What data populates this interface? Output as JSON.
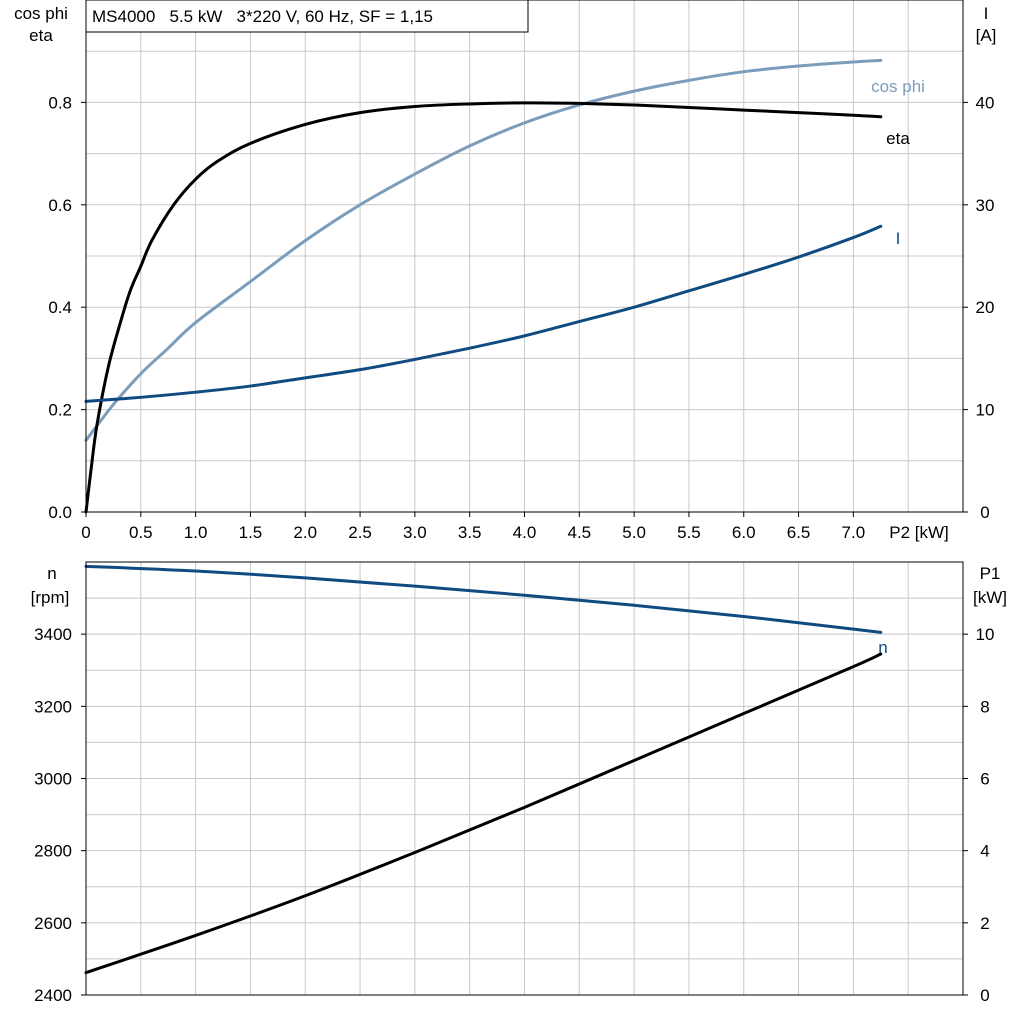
{
  "colors": {
    "eta": "#000000",
    "cos_phi": "#7b9dbb",
    "I": "#0f4a80",
    "n": "#0f4a80",
    "P1": "#000000",
    "grid": "#c8c8c8"
  },
  "chart_data": [
    {
      "type": "line",
      "title": "MS4000   5.5 kW   3*220 V, 60 Hz, SF = 1,15",
      "xlabel": "P2 [kW]",
      "ylabel_left": [
        "cos phi",
        "eta"
      ],
      "ylabel_right": [
        "I",
        "[A]"
      ],
      "xlim": [
        0,
        8.0
      ],
      "ylim_left": [
        0,
        1.0
      ],
      "ylim_right": [
        0,
        50
      ],
      "x_ticks": [
        "0",
        "0.5",
        "1.0",
        "1.5",
        "2.0",
        "2.5",
        "3.0",
        "3.5",
        "4.0",
        "4.5",
        "5.0",
        "5.5",
        "6.0",
        "6.5",
        "7.0"
      ],
      "y_left_ticks": [
        "0.0",
        "0.2",
        "0.4",
        "0.6",
        "0.8"
      ],
      "y_right_ticks": [
        "0",
        "10",
        "20",
        "30",
        "40"
      ],
      "grid": true,
      "series": [
        {
          "name": "eta",
          "axis": "left",
          "color_key": "eta",
          "x": [
            0,
            0.05,
            0.1,
            0.2,
            0.3,
            0.4,
            0.5,
            0.6,
            0.8,
            1.0,
            1.2,
            1.5,
            2.0,
            2.5,
            3.0,
            3.5,
            4.0,
            4.5,
            5.0,
            5.5,
            6.0,
            6.5,
            7.0,
            7.25
          ],
          "y": [
            0.0,
            0.09,
            0.17,
            0.28,
            0.36,
            0.43,
            0.48,
            0.53,
            0.6,
            0.65,
            0.685,
            0.72,
            0.757,
            0.78,
            0.792,
            0.797,
            0.799,
            0.798,
            0.795,
            0.79,
            0.785,
            0.78,
            0.775,
            0.772
          ]
        },
        {
          "name": "cos phi",
          "axis": "left",
          "color_key": "cos_phi",
          "x": [
            0,
            0.25,
            0.5,
            0.75,
            1.0,
            1.5,
            2.0,
            2.5,
            3.0,
            3.5,
            4.0,
            4.5,
            5.0,
            5.5,
            6.0,
            6.5,
            7.0,
            7.25
          ],
          "y": [
            0.14,
            0.21,
            0.27,
            0.32,
            0.37,
            0.45,
            0.53,
            0.6,
            0.66,
            0.715,
            0.76,
            0.795,
            0.822,
            0.843,
            0.86,
            0.871,
            0.879,
            0.882
          ]
        },
        {
          "name": "I",
          "axis": "right",
          "color_key": "I",
          "x": [
            0,
            0.5,
            1.0,
            1.5,
            2.0,
            2.5,
            3.0,
            3.5,
            4.0,
            4.5,
            5.0,
            5.5,
            6.0,
            6.5,
            7.0,
            7.25
          ],
          "y": [
            10.8,
            11.2,
            11.7,
            12.3,
            13.1,
            13.9,
            14.9,
            16.0,
            17.2,
            18.6,
            20.0,
            21.6,
            23.2,
            24.9,
            26.8,
            27.9
          ]
        }
      ]
    },
    {
      "type": "line",
      "xlim": [
        0,
        8.0
      ],
      "ylabel_left": [
        "n",
        "[rpm]"
      ],
      "ylabel_right": [
        "P1",
        "[kW]"
      ],
      "ylim_left": [
        2400,
        3600
      ],
      "ylim_right": [
        0,
        12
      ],
      "y_left_ticks": [
        "2400",
        "2600",
        "2800",
        "3000",
        "3200",
        "3400"
      ],
      "y_right_ticks": [
        "0",
        "2",
        "4",
        "6",
        "8",
        "10"
      ],
      "grid": true,
      "series": [
        {
          "name": "n",
          "axis": "left",
          "color_key": "n",
          "x": [
            0,
            1.0,
            2.0,
            3.0,
            4.0,
            5.0,
            6.0,
            7.0,
            7.25
          ],
          "y": [
            3588,
            3575,
            3556,
            3533,
            3508,
            3480,
            3449,
            3414,
            3405
          ]
        },
        {
          "name": "",
          "axis": "right",
          "color_key": "P1",
          "x": [
            0,
            1.0,
            2.0,
            3.0,
            4.0,
            5.0,
            6.0,
            7.0,
            7.25
          ],
          "y": [
            0.62,
            1.65,
            2.75,
            3.95,
            5.2,
            6.5,
            7.8,
            9.1,
            9.45
          ]
        }
      ]
    }
  ]
}
